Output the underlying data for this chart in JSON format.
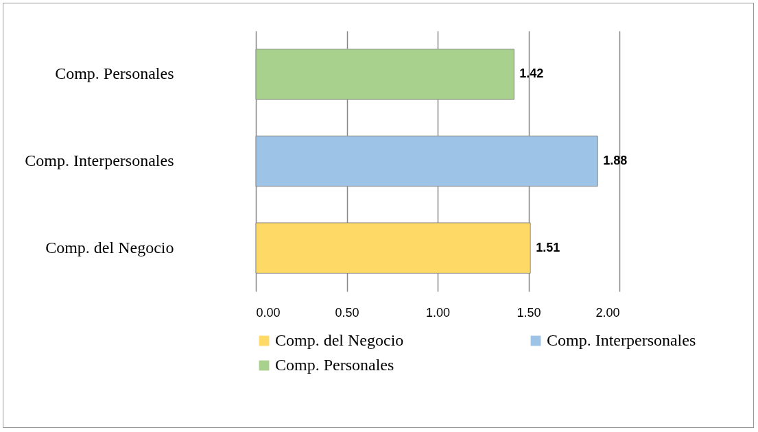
{
  "chart_data": {
    "type": "bar",
    "orientation": "horizontal",
    "categories": [
      "Comp. Personales",
      "Comp. Interpersonales",
      "Comp. del Negocio"
    ],
    "series": [
      {
        "name": "Comp. del Negocio",
        "color": "#ffd966",
        "values": [
          null,
          null,
          1.51
        ]
      },
      {
        "name": "Comp. Interpersonales",
        "color": "#9dc3e6",
        "values": [
          null,
          1.88,
          null
        ]
      },
      {
        "name": "Comp. Personales",
        "color": "#a9d18e",
        "values": [
          1.42,
          null,
          null
        ]
      }
    ],
    "xlim": [
      0,
      2
    ],
    "xticks": [
      {
        "value": 0,
        "label": "0.00"
      },
      {
        "value": 0.5,
        "label": "0.50"
      },
      {
        "value": 1,
        "label": "1.00"
      },
      {
        "value": 1.5,
        "label": "1.50"
      },
      {
        "value": 2,
        "label": "2.00"
      }
    ],
    "grid": "x",
    "data_labels": true,
    "legend": "bottom"
  }
}
